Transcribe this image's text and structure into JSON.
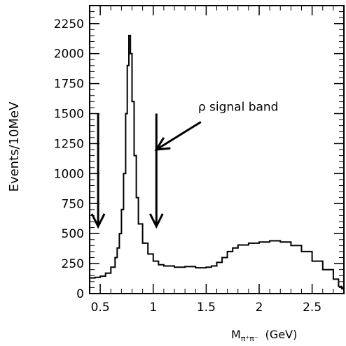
{
  "chart_data": {
    "type": "line",
    "title": "",
    "xlabel": "M",
    "xlabel_sub": "π⁺π⁻",
    "xunit": "(GeV)",
    "ylabel": "Events/10MeV",
    "xlim": [
      0.4,
      2.8
    ],
    "ylim": [
      0,
      2400
    ],
    "grid": false,
    "x_ticks": [
      0.5,
      1,
      1.5,
      2,
      2.5
    ],
    "x_tick_labels": [
      "0.5",
      "1",
      "1.5",
      "2",
      "2.5"
    ],
    "y_ticks": [
      0,
      250,
      500,
      750,
      1000,
      1250,
      1500,
      1750,
      2000,
      2250
    ],
    "y_tick_labels": [
      "0",
      "250",
      "500",
      "750",
      "1000",
      "1250",
      "1500",
      "1750",
      "2000",
      "2250"
    ],
    "series": [
      {
        "style": "histogram-step",
        "points": [
          [
            0.4,
            130
          ],
          [
            0.45,
            135
          ],
          [
            0.5,
            145
          ],
          [
            0.55,
            170
          ],
          [
            0.6,
            220
          ],
          [
            0.64,
            300
          ],
          [
            0.66,
            380
          ],
          [
            0.68,
            500
          ],
          [
            0.7,
            700
          ],
          [
            0.72,
            1000
          ],
          [
            0.74,
            1500
          ],
          [
            0.755,
            1900
          ],
          [
            0.77,
            2150
          ],
          [
            0.785,
            2000
          ],
          [
            0.8,
            1600
          ],
          [
            0.82,
            1150
          ],
          [
            0.84,
            800
          ],
          [
            0.86,
            580
          ],
          [
            0.9,
            420
          ],
          [
            0.95,
            330
          ],
          [
            1.0,
            270
          ],
          [
            1.05,
            240
          ],
          [
            1.1,
            230
          ],
          [
            1.2,
            220
          ],
          [
            1.3,
            225
          ],
          [
            1.4,
            215
          ],
          [
            1.5,
            220
          ],
          [
            1.55,
            230
          ],
          [
            1.6,
            260
          ],
          [
            1.65,
            300
          ],
          [
            1.7,
            350
          ],
          [
            1.75,
            380
          ],
          [
            1.8,
            405
          ],
          [
            1.9,
            420
          ],
          [
            2.0,
            430
          ],
          [
            2.1,
            440
          ],
          [
            2.2,
            430
          ],
          [
            2.3,
            400
          ],
          [
            2.4,
            350
          ],
          [
            2.5,
            270
          ],
          [
            2.6,
            200
          ],
          [
            2.7,
            120
          ],
          [
            2.75,
            60
          ],
          [
            2.78,
            40
          ]
        ]
      }
    ],
    "annotations": [
      {
        "kind": "arrow",
        "from": [
          0.48,
          1500
        ],
        "to": [
          0.48,
          560
        ]
      },
      {
        "kind": "arrow",
        "from": [
          1.03,
          1500
        ],
        "to": [
          1.03,
          560
        ]
      },
      {
        "kind": "arrow-label",
        "text": "ρ signal band",
        "from": [
          1.45,
          1430
        ],
        "to": [
          1.03,
          1200
        ]
      }
    ]
  }
}
